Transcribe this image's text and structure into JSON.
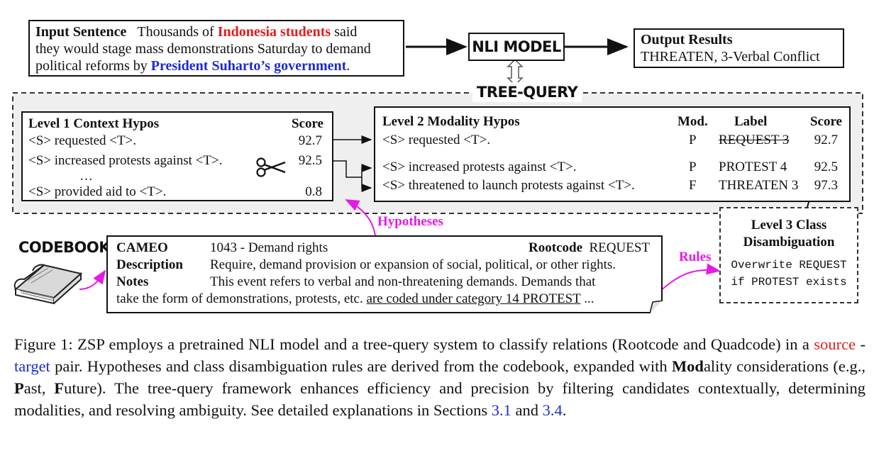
{
  "input": {
    "heading": "Input Sentence",
    "text_before": "Thousands of",
    "source_entity": "Indonesia students",
    "text_middle_1": "said",
    "line2": "they would stage mass demonstrations Saturday to demand",
    "line3_before": "political reforms by",
    "target_entity": "President Suharto’s government",
    "line3_after": "."
  },
  "nli_model": {
    "label": "NLI MODEL"
  },
  "output": {
    "heading": "Output Results",
    "value": "THREATEN,  3-Verbal Conflict"
  },
  "tree_query": {
    "label": "TREE-QUERY"
  },
  "level1": {
    "heading": "Level 1  Context Hypos",
    "score_header": "Score",
    "rows": [
      {
        "text": "<S> requested <T>.",
        "score": "92.7"
      },
      {
        "text": "<S> increased protests against <T>.",
        "score": "92.5"
      },
      {
        "text": "…",
        "score": ""
      },
      {
        "text": "<S> provided aid to <T>.",
        "score": "0.8"
      }
    ]
  },
  "level2": {
    "heading": "Level 2  Modality Hypos",
    "mod_header": "Mod.",
    "label_header": "Label",
    "score_header": "Score",
    "rows": [
      {
        "text": "<S> requested <T>.",
        "mod": "P",
        "label": "REQUEST 3",
        "score": "92.7"
      },
      {
        "text": "<S> increased protests  against <T>.",
        "mod": "P",
        "label": "PROTEST 4",
        "score": "92.5"
      },
      {
        "text": "<S> threatened to launch protests against <T>.",
        "mod": "F",
        "label": "THREATEN 3",
        "score": "97.3"
      }
    ]
  },
  "level3": {
    "heading_line1": "Level 3 Class",
    "heading_line2": "Disambiguation",
    "rule_line1": "Overwrite REQUEST",
    "rule_line2": "if PROTEST exists"
  },
  "codebook": {
    "label": "CODEBOOK",
    "cameo_key": "CAMEO",
    "cameo_value": "1043 - Demand rights",
    "rootcode_key": "Rootcode",
    "rootcode_value": "REQUEST",
    "description_key": "Description",
    "description_value": "Require, demand provision or expansion of social, political, or other rights.",
    "notes_key": "Notes",
    "notes_value": "This event refers to verbal and non-threatening demands.  Demands that",
    "notes_line2_before": "take the form of demonstrations, protests, etc.",
    "notes_line2_underlined": "are coded under category 14 PROTEST",
    "notes_line2_after": "..."
  },
  "annotations": {
    "hypotheses": "Hypotheses",
    "rules": "Rules"
  },
  "caption": {
    "p1": "Figure 1: ZSP employs a pretrained NLI model and a tree-query system to classify relations (Rootcode and Quadcode) in a",
    "source_word": "source",
    "dash": "-",
    "target_word": "target",
    "p2": "pair. Hypotheses and class disambiguation rules are derived from the codebook, expanded with",
    "mod_bold": "Mod",
    "p3": "ality considerations (e.g.,",
    "past_bold": "P",
    "past_rest": "ast,",
    "future_bold": "F",
    "future_rest": "uture). The tree-query framework enhances efficiency and precision by filtering candidates contextually, determining modalities, and resolving ambiguity.  See detailed explanations in Sections",
    "ref1": "3.1",
    "and": "and",
    "ref2": "3.4",
    "end": "."
  },
  "colors": {
    "source": "#e11d1d",
    "target": "#1a2bd4",
    "annotation": "#e619e6",
    "cut_line": "#f0a020"
  }
}
